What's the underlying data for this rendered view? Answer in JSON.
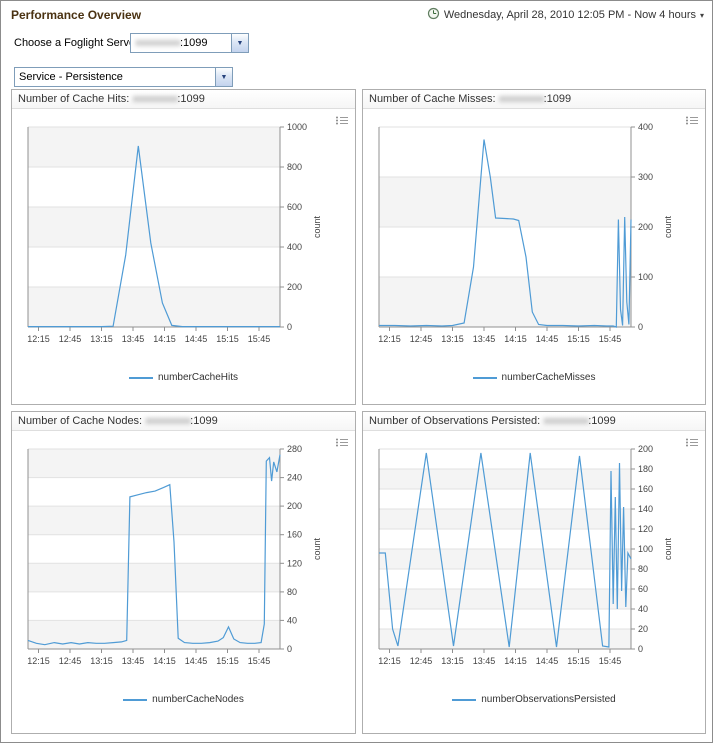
{
  "header": {
    "title": "Performance Overview",
    "time_range_text": "Wednesday, April 28, 2010 12:05 PM - Now 4 hours",
    "time_range_arrow": "▾"
  },
  "controls": {
    "server_label": "Choose a Foglight Server",
    "server_combo": {
      "blur": "xxxxxxxxxx",
      "suffix": ":1099",
      "arrow": "▼"
    },
    "service_combo": {
      "value": "Service - Persistence",
      "arrow": "▼"
    }
  },
  "colors": {
    "accent_line": "#4f9bd5",
    "axis": "#909090",
    "grid": "#e2e2e2"
  },
  "chart_data": [
    {
      "type": "line",
      "title": "Number of Cache Hits: ",
      "server_blur": "xxxxxxxxxx",
      "server_suffix": ":1099",
      "legend": "numberCacheHits",
      "ylabel": "count",
      "line_color": "#4f9bd5",
      "xlim": [
        725,
        965
      ],
      "ylim": [
        0,
        1000
      ],
      "y_ticks": [
        0,
        200,
        400,
        600,
        800,
        1000
      ],
      "x_ticks": [
        {
          "m": 735,
          "label": "12:15"
        },
        {
          "m": 765,
          "label": "12:45"
        },
        {
          "m": 795,
          "label": "13:15"
        },
        {
          "m": 825,
          "label": "13:45"
        },
        {
          "m": 855,
          "label": "14:15"
        },
        {
          "m": 885,
          "label": "14:45"
        },
        {
          "m": 915,
          "label": "15:15"
        },
        {
          "m": 945,
          "label": "15:45"
        }
      ],
      "points": [
        [
          725,
          2
        ],
        [
          740,
          2
        ],
        [
          755,
          2
        ],
        [
          770,
          2
        ],
        [
          785,
          2
        ],
        [
          795,
          2
        ],
        [
          806,
          4
        ],
        [
          818,
          360
        ],
        [
          830,
          905
        ],
        [
          842,
          420
        ],
        [
          853,
          120
        ],
        [
          862,
          8
        ],
        [
          872,
          2
        ],
        [
          886,
          2
        ],
        [
          900,
          2
        ],
        [
          914,
          2
        ],
        [
          928,
          2
        ],
        [
          942,
          2
        ],
        [
          954,
          2
        ],
        [
          965,
          2
        ]
      ]
    },
    {
      "type": "line",
      "title": "Number of Cache Misses: ",
      "server_blur": "xxxxxxxxxx",
      "server_suffix": ":1099",
      "legend": "numberCacheMisses",
      "ylabel": "count",
      "line_color": "#4f9bd5",
      "xlim": [
        725,
        965
      ],
      "ylim": [
        0,
        400
      ],
      "y_ticks": [
        0,
        100,
        200,
        300,
        400
      ],
      "x_ticks": [
        {
          "m": 735,
          "label": "12:15"
        },
        {
          "m": 765,
          "label": "12:45"
        },
        {
          "m": 795,
          "label": "13:15"
        },
        {
          "m": 825,
          "label": "13:45"
        },
        {
          "m": 855,
          "label": "14:15"
        },
        {
          "m": 885,
          "label": "14:45"
        },
        {
          "m": 915,
          "label": "15:15"
        },
        {
          "m": 945,
          "label": "15:45"
        }
      ],
      "points": [
        [
          725,
          3
        ],
        [
          740,
          3
        ],
        [
          755,
          2
        ],
        [
          770,
          3
        ],
        [
          785,
          2
        ],
        [
          795,
          3
        ],
        [
          806,
          8
        ],
        [
          815,
          120
        ],
        [
          825,
          375
        ],
        [
          831,
          300
        ],
        [
          836,
          218
        ],
        [
          845,
          217
        ],
        [
          853,
          216
        ],
        [
          858,
          213
        ],
        [
          865,
          140
        ],
        [
          871,
          30
        ],
        [
          877,
          5
        ],
        [
          885,
          3
        ],
        [
          900,
          3
        ],
        [
          915,
          2
        ],
        [
          930,
          3
        ],
        [
          942,
          2
        ],
        [
          948,
          2
        ],
        [
          951,
          0
        ],
        [
          953,
          215
        ],
        [
          955,
          35
        ],
        [
          957,
          3
        ],
        [
          959,
          220
        ],
        [
          961,
          50
        ],
        [
          963,
          5
        ],
        [
          965,
          215
        ]
      ]
    },
    {
      "type": "line",
      "title": "Number of Cache Nodes: ",
      "server_blur": "xxxxxxxxxx",
      "server_suffix": ":1099",
      "legend": "numberCacheNodes",
      "ylabel": "count",
      "line_color": "#4f9bd5",
      "xlim": [
        725,
        965
      ],
      "ylim": [
        0,
        280
      ],
      "y_ticks": [
        0,
        40,
        80,
        120,
        160,
        200,
        240,
        280
      ],
      "x_ticks": [
        {
          "m": 735,
          "label": "12:15"
        },
        {
          "m": 765,
          "label": "12:45"
        },
        {
          "m": 795,
          "label": "13:15"
        },
        {
          "m": 825,
          "label": "13:45"
        },
        {
          "m": 855,
          "label": "14:15"
        },
        {
          "m": 885,
          "label": "14:45"
        },
        {
          "m": 915,
          "label": "15:15"
        },
        {
          "m": 945,
          "label": "15:45"
        }
      ],
      "points": [
        [
          725,
          12
        ],
        [
          733,
          8
        ],
        [
          741,
          6
        ],
        [
          750,
          9
        ],
        [
          758,
          7
        ],
        [
          766,
          9
        ],
        [
          774,
          7
        ],
        [
          782,
          9
        ],
        [
          790,
          8
        ],
        [
          798,
          8
        ],
        [
          806,
          9
        ],
        [
          814,
          10
        ],
        [
          819,
          12
        ],
        [
          822,
          213
        ],
        [
          830,
          216
        ],
        [
          838,
          219
        ],
        [
          846,
          221
        ],
        [
          854,
          226
        ],
        [
          860,
          230
        ],
        [
          864,
          150
        ],
        [
          868,
          15
        ],
        [
          874,
          9
        ],
        [
          882,
          8
        ],
        [
          890,
          8
        ],
        [
          898,
          9
        ],
        [
          906,
          11
        ],
        [
          911,
          16
        ],
        [
          916,
          31
        ],
        [
          921,
          14
        ],
        [
          927,
          9
        ],
        [
          934,
          8
        ],
        [
          941,
          8
        ],
        [
          947,
          9
        ],
        [
          950,
          35
        ],
        [
          952,
          263
        ],
        [
          955,
          268
        ],
        [
          957,
          235
        ],
        [
          959,
          262
        ],
        [
          962,
          248
        ],
        [
          965,
          272
        ]
      ]
    },
    {
      "type": "line",
      "title": "Number of Observations Persisted: ",
      "server_blur": "xxxxxxxxxx",
      "server_suffix": ":1099",
      "legend": "numberObservationsPersisted",
      "ylabel": "count",
      "line_color": "#4f9bd5",
      "xlim": [
        725,
        965
      ],
      "ylim": [
        0,
        200
      ],
      "y_ticks": [
        0,
        20,
        40,
        60,
        80,
        100,
        120,
        140,
        160,
        180,
        200
      ],
      "x_ticks": [
        {
          "m": 735,
          "label": "12:15"
        },
        {
          "m": 765,
          "label": "12:45"
        },
        {
          "m": 795,
          "label": "13:15"
        },
        {
          "m": 825,
          "label": "13:45"
        },
        {
          "m": 855,
          "label": "14:15"
        },
        {
          "m": 885,
          "label": "14:45"
        },
        {
          "m": 915,
          "label": "15:15"
        },
        {
          "m": 945,
          "label": "15:45"
        }
      ],
      "points": [
        [
          725,
          96
        ],
        [
          731,
          96
        ],
        [
          738,
          20
        ],
        [
          743,
          3
        ],
        [
          770,
          196
        ],
        [
          796,
          3
        ],
        [
          822,
          196
        ],
        [
          849,
          2
        ],
        [
          869,
          196
        ],
        [
          894,
          2
        ],
        [
          916,
          193
        ],
        [
          938,
          3
        ],
        [
          944,
          2
        ],
        [
          946,
          178
        ],
        [
          948,
          45
        ],
        [
          950,
          152
        ],
        [
          952,
          40
        ],
        [
          954,
          186
        ],
        [
          956,
          58
        ],
        [
          958,
          142
        ],
        [
          960,
          42
        ],
        [
          962,
          96
        ],
        [
          965,
          90
        ]
      ]
    }
  ]
}
